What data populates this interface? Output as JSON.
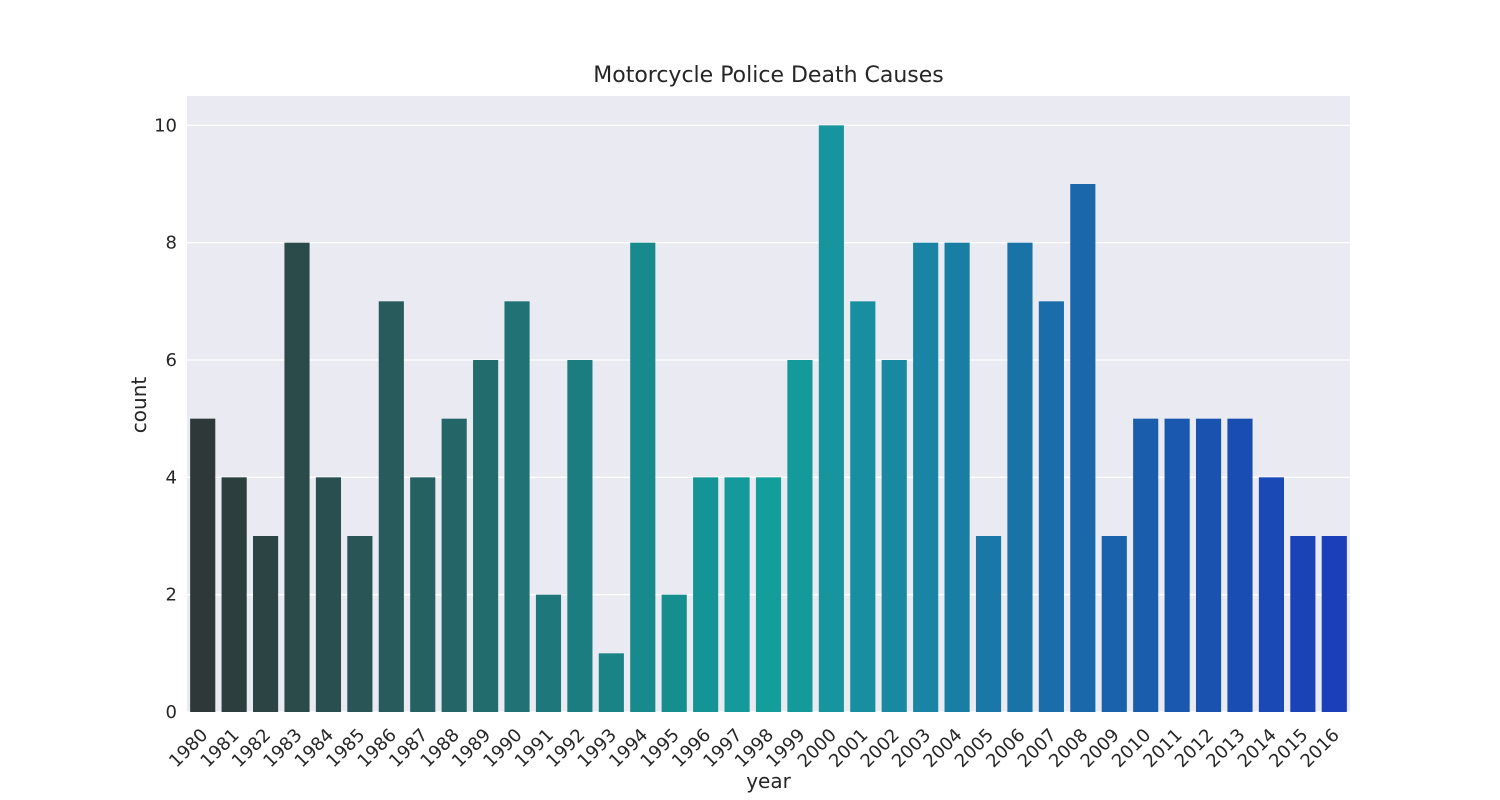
{
  "chart_data": {
    "type": "bar",
    "title": "Motorcycle Police Death Causes",
    "xlabel": "year",
    "ylabel": "count",
    "ylim": [
      0,
      10.5
    ],
    "yticks": [
      0,
      2,
      4,
      6,
      8,
      10
    ],
    "grid": true,
    "background_color": "#eaeaf2",
    "grid_color": "#ffffff",
    "palette": "dark-teal to blue gradient",
    "categories": [
      "1980",
      "1981",
      "1982",
      "1983",
      "1984",
      "1985",
      "1986",
      "1987",
      "1988",
      "1989",
      "1990",
      "1991",
      "1992",
      "1993",
      "1994",
      "1995",
      "1996",
      "1997",
      "1998",
      "1999",
      "2000",
      "2001",
      "2002",
      "2003",
      "2004",
      "2005",
      "2006",
      "2007",
      "2008",
      "2009",
      "2010",
      "2011",
      "2012",
      "2013",
      "2014",
      "2015",
      "2016"
    ],
    "values": [
      5,
      4,
      3,
      8,
      4,
      3,
      7,
      4,
      5,
      6,
      7,
      2,
      6,
      1,
      8,
      2,
      4,
      4,
      4,
      6,
      10,
      7,
      6,
      8,
      8,
      3,
      8,
      7,
      9,
      3,
      5,
      5,
      5,
      5,
      4,
      3,
      3
    ],
    "colors": [
      "#2e3838",
      "#2d3e3e",
      "#2c4444",
      "#2b4a4a",
      "#2a4f50",
      "#295556",
      "#275b5c",
      "#266162",
      "#246668",
      "#226c6e",
      "#207274",
      "#1e777a",
      "#1c7d80",
      "#1a8386",
      "#18898c",
      "#168e90",
      "#159496",
      "#149a9a",
      "#139e9c",
      "#159a9c",
      "#17949e",
      "#188fa0",
      "#1889a1",
      "#1984a3",
      "#197ea4",
      "#1a78a6",
      "#1a73a7",
      "#1a6da8",
      "#1a68aa",
      "#1a62ab",
      "#1a5dac",
      "#1a57ae",
      "#1a52b0",
      "#1a4db2",
      "#1a48b4",
      "#1a43b6",
      "#1a3fb8"
    ]
  }
}
